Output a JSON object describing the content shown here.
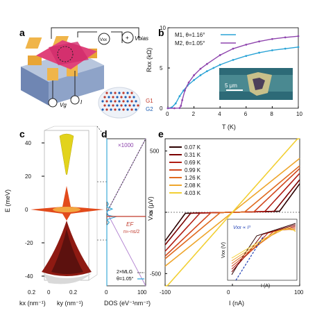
{
  "panels": {
    "a": {
      "label": "a",
      "vxx": "Vxx",
      "vbias": "Vbias",
      "vg": "Vg",
      "current": "I",
      "g1": "G1",
      "g2": "G2"
    },
    "b": {
      "label": "b",
      "xlabel": "T (K)",
      "ylabel": "Rxx (kΩ)",
      "inset_scale": "5 μm"
    },
    "c": {
      "label": "c",
      "ylabel": "E (meV)",
      "xlabel_kx": "kx (nm⁻¹)",
      "xlabel_ky": "ky (nm⁻¹)",
      "yticks": [
        "40",
        "20",
        "0",
        "-20",
        "-40"
      ],
      "kx_ticks": [
        "0.2",
        "0"
      ],
      "ky_ticks": [
        "0.2"
      ]
    },
    "d": {
      "label": "d",
      "xlabel": "DOS (eV⁻¹nm⁻²)",
      "xticks": [
        "0",
        "100"
      ],
      "scale_note": "×1000",
      "ef_label": "EF",
      "ef_note": "n≈-ns/2",
      "legend_2mlg": "2×MLG",
      "legend_theta": "θ=1.05°"
    },
    "e": {
      "label": "e",
      "xlabel": "I (nA)",
      "ylabel": "Vxx (μV)",
      "inset_xlabel": "I (A)",
      "inset_ylabel": "Vxx (V)",
      "inset_fit": "Vxx ∝ I³"
    }
  },
  "chart_data": [
    {
      "panel": "b",
      "type": "line",
      "xlabel": "T (K)",
      "ylabel": "Rxx (kΩ)",
      "xlim": [
        0,
        10
      ],
      "ylim": [
        0,
        10
      ],
      "xticks": [
        0,
        2,
        4,
        6,
        8,
        10
      ],
      "yticks": [
        0,
        5,
        10
      ],
      "series": [
        {
          "name": "M1, θ=1.16°",
          "color": "#29a3d6",
          "x": [
            0,
            0.3,
            0.6,
            0.9,
            1.2,
            1.5,
            2,
            2.5,
            3,
            3.5,
            4,
            5,
            6,
            7,
            8,
            9,
            10
          ],
          "y": [
            0,
            0.1,
            0.6,
            1.5,
            2.2,
            2.8,
            3.5,
            4.1,
            4.6,
            5.0,
            5.4,
            6.0,
            6.5,
            6.9,
            7.2,
            7.4,
            7.6
          ]
        },
        {
          "name": "M2, θ=1.05°",
          "color": "#8e44ad",
          "x": [
            0,
            0.5,
            0.9,
            1.0,
            1.1,
            1.3,
            1.6,
            2,
            2.5,
            3,
            4,
            5,
            6,
            7,
            8,
            9,
            10
          ],
          "y": [
            0,
            0,
            0.02,
            0.3,
            1.0,
            2.2,
            3.2,
            4.1,
            4.9,
            5.5,
            6.6,
            7.4,
            7.9,
            8.3,
            8.6,
            8.8,
            8.95
          ]
        }
      ]
    },
    {
      "panel": "d",
      "type": "line",
      "xlabel": "DOS (eV⁻¹nm⁻²)",
      "xlim": [
        0,
        100
      ],
      "ylim": [
        -40,
        40
      ],
      "xticks": [
        0,
        100
      ],
      "series": [
        {
          "name": "2×MLG",
          "color": "#444444",
          "style": "dashed",
          "x": [
            0,
            100
          ],
          "y": [
            0,
            40
          ]
        },
        {
          "name": "θ=1.05°",
          "color": "#29a3d6",
          "x": [
            0,
            0,
            6,
            0,
            22,
            2,
            0,
            14,
            0,
            4,
            0,
            0
          ],
          "y": [
            -40,
            -7,
            -5.5,
            -4,
            -2.5,
            -1.5,
            0.5,
            1.8,
            3,
            4.5,
            6,
            40
          ]
        }
      ],
      "ef": -2.5
    },
    {
      "panel": "e",
      "type": "line",
      "xlabel": "I (nA)",
      "ylabel": "Vxx (μV)",
      "xlim": [
        -100,
        100
      ],
      "ylim": [
        -600,
        600
      ],
      "xticks": [
        -100,
        0,
        100
      ],
      "yticks": [
        -500,
        0,
        500
      ],
      "series": [
        {
          "name": "0.07 K",
          "color": "#2b0000",
          "critical_current": 70,
          "slope": 2.6,
          "offset_slope": 7.5
        },
        {
          "name": "0.31 K",
          "color": "#7a0000",
          "critical_current": 62,
          "slope": 2.6,
          "offset_slope": 6.8
        },
        {
          "name": "0.69 K",
          "color": "#b01d14",
          "critical_current": 48,
          "slope": 2.7,
          "offset_slope": 6.0
        },
        {
          "name": "0.99 K",
          "color": "#d1451c",
          "critical_current": 32,
          "slope": 3.0,
          "offset_slope": 5.2
        },
        {
          "name": "1.26 K",
          "color": "#e06a1f",
          "critical_current": 18,
          "slope": 3.6,
          "offset_slope": 4.6
        },
        {
          "name": "2.08 K",
          "color": "#eea52b",
          "critical_current": 0,
          "slope": 4.4,
          "offset_slope": 0
        },
        {
          "name": "4.03 K",
          "color": "#f2cf33",
          "critical_current": 0,
          "slope": 6.2,
          "offset_slope": 0
        }
      ]
    }
  ]
}
